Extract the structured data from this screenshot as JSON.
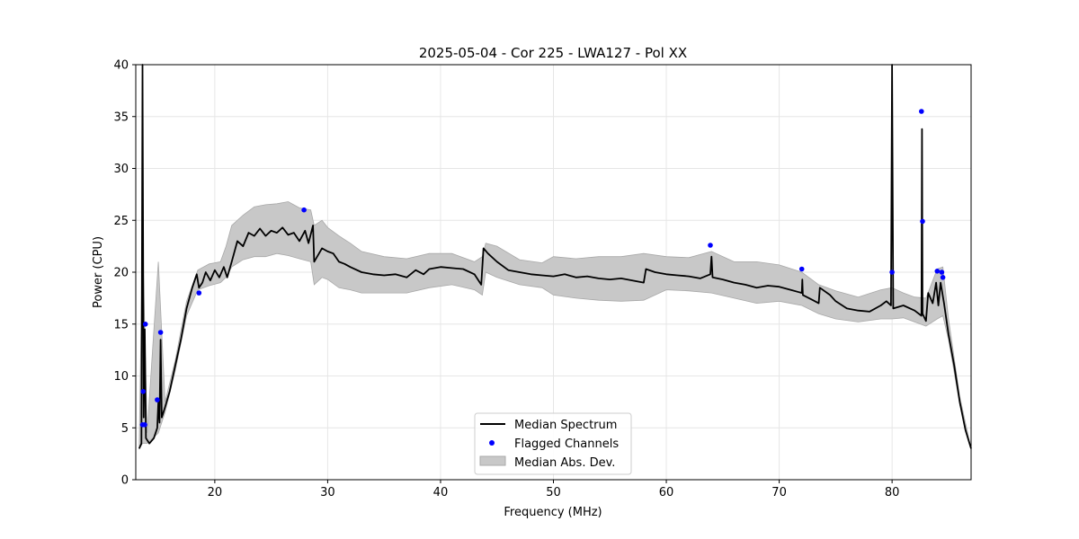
{
  "chart_data": {
    "type": "line",
    "title": "2025-05-04 - Cor 225 - LWA127 - Pol XX",
    "xlabel": "Frequency (MHz)",
    "ylabel": "Power (CPU)",
    "xlim": [
      13,
      87
    ],
    "ylim": [
      0,
      40
    ],
    "xticks": [
      20,
      30,
      40,
      50,
      60,
      70,
      80
    ],
    "yticks": [
      0,
      5,
      10,
      15,
      20,
      25,
      30,
      35,
      40
    ],
    "grid": true,
    "legend_position": "lower-center",
    "series": [
      {
        "name": "Median Spectrum",
        "color": "#000000",
        "points": [
          [
            13.3,
            3.0
          ],
          [
            13.5,
            3.5
          ],
          [
            13.6,
            40.0
          ],
          [
            13.7,
            6.0
          ],
          [
            13.8,
            14.5
          ],
          [
            13.9,
            4.0
          ],
          [
            14.2,
            3.5
          ],
          [
            14.6,
            4.0
          ],
          [
            14.9,
            5.0
          ],
          [
            15.0,
            7.5
          ],
          [
            15.1,
            5.5
          ],
          [
            15.2,
            13.5
          ],
          [
            15.3,
            6.0
          ],
          [
            15.6,
            7.0
          ],
          [
            16.0,
            8.5
          ],
          [
            16.5,
            11.0
          ],
          [
            17.0,
            13.5
          ],
          [
            17.5,
            16.5
          ],
          [
            18.0,
            18.5
          ],
          [
            18.4,
            19.8
          ],
          [
            18.6,
            18.5
          ],
          [
            18.9,
            19.0
          ],
          [
            19.2,
            20.0
          ],
          [
            19.6,
            19.2
          ],
          [
            20.0,
            20.2
          ],
          [
            20.4,
            19.5
          ],
          [
            20.8,
            20.5
          ],
          [
            21.1,
            19.5
          ],
          [
            21.5,
            21.0
          ],
          [
            22.0,
            23.0
          ],
          [
            22.5,
            22.5
          ],
          [
            23.0,
            23.8
          ],
          [
            23.5,
            23.5
          ],
          [
            24.0,
            24.2
          ],
          [
            24.5,
            23.5
          ],
          [
            25.0,
            24.0
          ],
          [
            25.5,
            23.8
          ],
          [
            26.0,
            24.3
          ],
          [
            26.5,
            23.6
          ],
          [
            27.0,
            23.8
          ],
          [
            27.5,
            23.0
          ],
          [
            28.0,
            24.0
          ],
          [
            28.3,
            22.8
          ],
          [
            28.7,
            24.5
          ],
          [
            28.8,
            21.0
          ],
          [
            29.5,
            22.3
          ],
          [
            30.0,
            22.0
          ],
          [
            30.5,
            21.8
          ],
          [
            31.0,
            21.0
          ],
          [
            31.5,
            20.8
          ],
          [
            32.0,
            20.5
          ],
          [
            33.0,
            20.0
          ],
          [
            34.0,
            19.8
          ],
          [
            35.0,
            19.7
          ],
          [
            36.0,
            19.8
          ],
          [
            37.0,
            19.5
          ],
          [
            37.8,
            20.2
          ],
          [
            38.5,
            19.8
          ],
          [
            39.0,
            20.3
          ],
          [
            40.0,
            20.5
          ],
          [
            41.0,
            20.4
          ],
          [
            42.0,
            20.3
          ],
          [
            43.0,
            19.8
          ],
          [
            43.6,
            18.8
          ],
          [
            43.8,
            22.3
          ],
          [
            44.2,
            21.8
          ],
          [
            45.0,
            21.0
          ],
          [
            46.0,
            20.2
          ],
          [
            47.0,
            20.0
          ],
          [
            48.0,
            19.8
          ],
          [
            49.0,
            19.7
          ],
          [
            50.0,
            19.6
          ],
          [
            51.0,
            19.8
          ],
          [
            52.0,
            19.5
          ],
          [
            53.0,
            19.6
          ],
          [
            54.0,
            19.4
          ],
          [
            55.0,
            19.3
          ],
          [
            56.0,
            19.4
          ],
          [
            57.0,
            19.2
          ],
          [
            58.0,
            19.0
          ],
          [
            58.2,
            20.3
          ],
          [
            59.0,
            20.0
          ],
          [
            60.0,
            19.8
          ],
          [
            61.0,
            19.7
          ],
          [
            62.0,
            19.6
          ],
          [
            63.0,
            19.4
          ],
          [
            63.9,
            19.8
          ],
          [
            64.0,
            21.5
          ],
          [
            64.1,
            19.5
          ],
          [
            65.0,
            19.3
          ],
          [
            66.0,
            19.0
          ],
          [
            67.0,
            18.8
          ],
          [
            68.0,
            18.5
          ],
          [
            69.0,
            18.7
          ],
          [
            70.0,
            18.6
          ],
          [
            71.0,
            18.3
          ],
          [
            72.0,
            18.0
          ],
          [
            72.05,
            19.3
          ],
          [
            72.1,
            17.8
          ],
          [
            73.0,
            17.3
          ],
          [
            73.5,
            17.0
          ],
          [
            73.6,
            18.5
          ],
          [
            74.5,
            17.8
          ],
          [
            75.0,
            17.2
          ],
          [
            76.0,
            16.5
          ],
          [
            77.0,
            16.3
          ],
          [
            78.0,
            16.2
          ],
          [
            79.0,
            16.8
          ],
          [
            79.5,
            17.2
          ],
          [
            79.9,
            16.8
          ],
          [
            80.0,
            40.0
          ],
          [
            80.1,
            16.5
          ],
          [
            81.0,
            16.8
          ],
          [
            82.0,
            16.3
          ],
          [
            82.6,
            15.8
          ],
          [
            82.65,
            33.8
          ],
          [
            82.7,
            16.0
          ],
          [
            83.0,
            15.3
          ],
          [
            83.2,
            18.0
          ],
          [
            83.6,
            17.0
          ],
          [
            83.9,
            19.0
          ],
          [
            84.1,
            16.8
          ],
          [
            84.3,
            19.0
          ],
          [
            84.6,
            17.0
          ],
          [
            85.0,
            14.0
          ],
          [
            85.5,
            11.0
          ],
          [
            86.0,
            7.5
          ],
          [
            86.5,
            4.8
          ],
          [
            87.0,
            3.0
          ]
        ]
      },
      {
        "name": "Flagged Channels",
        "color": "#0000ff",
        "points": [
          [
            13.6,
            5.3
          ],
          [
            13.65,
            8.5
          ],
          [
            13.8,
            5.3
          ],
          [
            13.85,
            15.0
          ],
          [
            14.9,
            7.7
          ],
          [
            15.2,
            14.2
          ],
          [
            18.6,
            18.0
          ],
          [
            27.9,
            26.0
          ],
          [
            63.9,
            22.6
          ],
          [
            72.0,
            20.3
          ],
          [
            80.0,
            20.0
          ],
          [
            82.6,
            35.5
          ],
          [
            82.7,
            24.9
          ],
          [
            84.0,
            20.1
          ],
          [
            84.4,
            20.0
          ],
          [
            84.5,
            19.5
          ]
        ]
      },
      {
        "name": "Median Abs. Dev.",
        "color": "#c8c8c8",
        "type": "band",
        "points": [
          [
            13.3,
            3.0,
            3.0
          ],
          [
            13.6,
            3.5,
            24.0
          ],
          [
            14.0,
            3.5,
            4.5
          ],
          [
            15.0,
            4.5,
            21.0
          ],
          [
            15.6,
            6.5,
            7.5
          ],
          [
            16.5,
            10.5,
            11.5
          ],
          [
            17.5,
            15.8,
            17.2
          ],
          [
            18.5,
            18.3,
            20.2
          ],
          [
            19.5,
            18.7,
            20.8
          ],
          [
            20.5,
            19.0,
            21.0
          ],
          [
            21.0,
            19.5,
            22.5
          ],
          [
            21.5,
            20.5,
            24.5
          ],
          [
            22.5,
            21.2,
            25.5
          ],
          [
            23.5,
            21.5,
            26.3
          ],
          [
            24.5,
            21.5,
            26.5
          ],
          [
            25.5,
            21.8,
            26.6
          ],
          [
            26.5,
            21.6,
            26.8
          ],
          [
            27.5,
            21.3,
            26.2
          ],
          [
            28.5,
            21.0,
            26.0
          ],
          [
            28.8,
            18.8,
            24.5
          ],
          [
            29.5,
            19.5,
            25.0
          ],
          [
            30.0,
            19.3,
            24.3
          ],
          [
            31.0,
            18.5,
            23.5
          ],
          [
            32.0,
            18.3,
            22.8
          ],
          [
            33.0,
            18.0,
            22.0
          ],
          [
            35.0,
            18.0,
            21.5
          ],
          [
            37.0,
            18.0,
            21.3
          ],
          [
            39.0,
            18.5,
            21.8
          ],
          [
            41.0,
            18.8,
            21.8
          ],
          [
            43.0,
            18.3,
            21.0
          ],
          [
            43.7,
            17.8,
            21.5
          ],
          [
            44.0,
            20.0,
            22.8
          ],
          [
            45.0,
            19.5,
            22.5
          ],
          [
            47.0,
            18.8,
            21.2
          ],
          [
            49.0,
            18.5,
            20.9
          ],
          [
            50.0,
            17.8,
            21.5
          ],
          [
            52.0,
            17.5,
            21.3
          ],
          [
            54.0,
            17.3,
            21.5
          ],
          [
            56.0,
            17.2,
            21.5
          ],
          [
            58.0,
            17.3,
            21.8
          ],
          [
            60.0,
            18.3,
            21.5
          ],
          [
            62.0,
            18.2,
            21.4
          ],
          [
            64.0,
            18.0,
            22.0
          ],
          [
            66.0,
            17.5,
            21.0
          ],
          [
            68.0,
            17.0,
            21.0
          ],
          [
            70.0,
            17.2,
            20.7
          ],
          [
            72.0,
            16.8,
            20.0
          ],
          [
            73.5,
            16.0,
            18.8
          ],
          [
            75.0,
            15.5,
            18.2
          ],
          [
            77.0,
            15.2,
            17.6
          ],
          [
            79.0,
            15.5,
            18.3
          ],
          [
            80.0,
            15.5,
            18.5
          ],
          [
            81.0,
            15.6,
            18.0
          ],
          [
            82.0,
            15.2,
            17.6
          ],
          [
            83.0,
            14.8,
            17.5
          ],
          [
            84.0,
            15.5,
            20.3
          ],
          [
            84.5,
            15.8,
            20.5
          ],
          [
            85.0,
            13.5,
            15.5
          ],
          [
            86.0,
            7.2,
            8.0
          ],
          [
            87.0,
            3.0,
            3.0
          ]
        ]
      }
    ]
  }
}
